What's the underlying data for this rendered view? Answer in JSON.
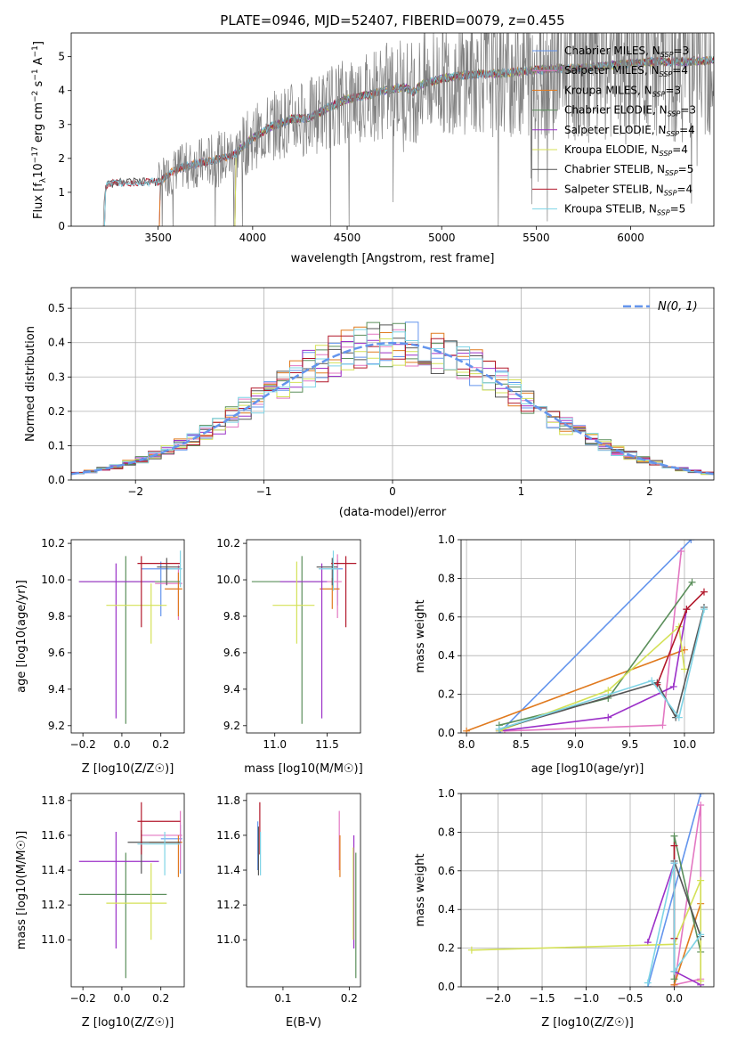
{
  "chart_data": [
    {
      "type": "line",
      "title": "PLATE=0946, MJD=52407, FIBERID=0079, z=0.455",
      "xlabel": "wavelength [Angstrom, rest frame]",
      "ylabel": "Flux [f_λ 10^-17 erg cm^-2 s^-1 A^-1]",
      "xlim": [
        3040,
        6440
      ],
      "ylim": [
        0,
        5.7
      ],
      "xticks": [
        "3500",
        "4000",
        "4500",
        "5000",
        "5500",
        "6000"
      ],
      "yticks": [
        "0",
        "1",
        "2",
        "3",
        "4",
        "5"
      ],
      "grid": false,
      "legend_position": "right",
      "data_series": {
        "name": "data",
        "color": "#808080",
        "x_start": 3210,
        "x_end": 6440,
        "noise_start": 3500
      },
      "series": [
        {
          "name": "Chabrier MILES, N_SSP=3",
          "color": "#6495ed",
          "x_start": 3500
        },
        {
          "name": "Salpeter MILES, N_SSP=4",
          "color": "#e377c2",
          "x_start": 3500
        },
        {
          "name": "Kroupa MILES, N_SSP=3",
          "color": "#e07a1f",
          "x_start": 3500
        },
        {
          "name": "Chabrier ELODIE, N_SSP=3",
          "color": "#5b8f5b",
          "x_start": 3900
        },
        {
          "name": "Salpeter ELODIE, N_SSP=4",
          "color": "#9b30c8",
          "x_start": 3900
        },
        {
          "name": "Kroupa ELODIE, N_SSP=4",
          "color": "#d4e157",
          "x_start": 3900
        },
        {
          "name": "Chabrier STELIB, N_SSP=5",
          "color": "#555555",
          "x_start": 3210
        },
        {
          "name": "Salpeter STELIB, N_SSP=4",
          "color": "#b2182b",
          "x_start": 3210
        },
        {
          "name": "Kroupa STELIB, N_SSP=5",
          "color": "#7fd4e6",
          "x_start": 3210
        }
      ],
      "continuum": [
        [
          3210,
          0
        ],
        [
          3215,
          0.9
        ],
        [
          3225,
          1.22
        ],
        [
          3300,
          1.3
        ],
        [
          3400,
          1.3
        ],
        [
          3500,
          1.3
        ],
        [
          3550,
          1.5
        ],
        [
          3600,
          1.7
        ],
        [
          3700,
          1.85
        ],
        [
          3800,
          1.95
        ],
        [
          3900,
          2.1
        ],
        [
          4000,
          2.6
        ],
        [
          4100,
          2.95
        ],
        [
          4200,
          3.15
        ],
        [
          4300,
          3.2
        ],
        [
          4400,
          3.5
        ],
        [
          4500,
          3.75
        ],
        [
          4600,
          3.85
        ],
        [
          4700,
          4.0
        ],
        [
          4800,
          4.1
        ],
        [
          4850,
          3.95
        ],
        [
          4900,
          4.2
        ],
        [
          5000,
          4.35
        ],
        [
          5100,
          4.45
        ],
        [
          5200,
          4.5
        ],
        [
          5300,
          4.5
        ],
        [
          5400,
          4.55
        ],
        [
          5500,
          4.6
        ],
        [
          5600,
          4.65
        ],
        [
          5700,
          4.65
        ],
        [
          5800,
          4.7
        ],
        [
          5900,
          4.75
        ],
        [
          6000,
          4.8
        ],
        [
          6100,
          4.85
        ],
        [
          6200,
          4.85
        ],
        [
          6300,
          4.85
        ],
        [
          6440,
          4.9
        ]
      ]
    },
    {
      "type": "line",
      "xlabel": "(data-model)/error",
      "ylabel": "Normed distribution",
      "xlim": [
        -2.5,
        2.5
      ],
      "ylim": [
        0,
        0.56
      ],
      "xticks": [
        "−2",
        "−1",
        "0",
        "1",
        "2"
      ],
      "yticks": [
        "0.0",
        "0.1",
        "0.2",
        "0.3",
        "0.4",
        "0.5"
      ],
      "grid": true,
      "legend": [
        {
          "label": "N(0,1)",
          "style": "dashed",
          "color": "#6495ed"
        }
      ],
      "legend_position": "top-right",
      "gaussian": {
        "mean": 0,
        "sigma": 1
      },
      "bin_width": 0.1,
      "series": [
        {
          "name": "Chabrier MILES",
          "color": "#6495ed"
        },
        {
          "name": "Salpeter MILES",
          "color": "#e377c2"
        },
        {
          "name": "Kroupa MILES",
          "color": "#e07a1f"
        },
        {
          "name": "Chabrier ELODIE",
          "color": "#5b8f5b"
        },
        {
          "name": "Salpeter ELODIE",
          "color": "#9b30c8"
        },
        {
          "name": "Kroupa ELODIE",
          "color": "#d4e157"
        },
        {
          "name": "Chabrier STELIB",
          "color": "#555555"
        },
        {
          "name": "Salpeter STELIB",
          "color": "#b2182b"
        },
        {
          "name": "Kroupa STELIB",
          "color": "#7fd4e6"
        }
      ]
    },
    {
      "type": "scatter",
      "xlabel": "Z [log10(Z/Z☉)]",
      "ylabel": "age [log10(age/yr)]",
      "xlim": [
        -0.26,
        0.32
      ],
      "ylim": [
        9.16,
        10.22
      ],
      "xticks": [
        "−0.2",
        "0.0",
        "0.2"
      ],
      "yticks": [
        "9.2",
        "9.4",
        "9.6",
        "9.8",
        "10.0",
        "10.2"
      ],
      "grid": false,
      "points": [
        {
          "color": "#6495ed",
          "x": 0.2,
          "xerr": [
            0.1,
            0.1
          ],
          "y": 10.06,
          "yerr": [
            0.26,
            0.04
          ]
        },
        {
          "color": "#e377c2",
          "x": 0.29,
          "xerr": [
            0.12,
            0.02
          ],
          "y": 9.98,
          "yerr": [
            0.2,
            0.1
          ]
        },
        {
          "color": "#e07a1f",
          "x": 0.29,
          "xerr": [
            0.07,
            0.02
          ],
          "y": 9.95,
          "yerr": [
            0.15,
            0.09
          ]
        },
        {
          "color": "#5b8f5b",
          "x": 0.02,
          "xerr": [
            0.24,
            0.28
          ],
          "y": 9.99,
          "yerr": [
            0.78,
            0.14
          ]
        },
        {
          "color": "#9b30c8",
          "x": -0.03,
          "xerr": [
            0.19,
            0.2
          ],
          "y": 9.99,
          "yerr": [
            0.75,
            0.1
          ]
        },
        {
          "color": "#d4e157",
          "x": 0.15,
          "xerr": [
            0.23,
            0.08
          ],
          "y": 9.86,
          "yerr": [
            0.21,
            0.12
          ]
        },
        {
          "color": "#555555",
          "x": 0.23,
          "xerr": [
            0.05,
            0.07
          ],
          "y": 10.07,
          "yerr": [
            0.1,
            0.05
          ]
        },
        {
          "color": "#b2182b",
          "x": 0.1,
          "xerr": [
            0.02,
            0.2
          ],
          "y": 10.09,
          "yerr": [
            0.35,
            0.04
          ]
        },
        {
          "color": "#7fd4e6",
          "x": 0.3,
          "xerr": [
            0.06,
            0.01
          ],
          "y": 10.06,
          "yerr": [
            0.1,
            0.1
          ]
        }
      ]
    },
    {
      "type": "scatter",
      "xlabel": "mass [log10(M/M☉)]",
      "xlim": [
        10.73,
        11.82
      ],
      "ylim": [
        9.16,
        10.22
      ],
      "xticks": [
        "11.0",
        "11.5"
      ],
      "yticks": [
        "9.2",
        "9.4",
        "9.6",
        "9.8",
        "10.0",
        "10.2"
      ],
      "grid": false,
      "points": [
        {
          "color": "#6495ed",
          "x": 11.6,
          "xerr": [
            0.05,
            0.05
          ],
          "y": 10.06,
          "yerr": [
            0.2,
            0.05
          ]
        },
        {
          "color": "#e377c2",
          "x": 11.6,
          "xerr": [
            0.1,
            0.04
          ],
          "y": 9.99,
          "yerr": [
            0.2,
            0.15
          ]
        },
        {
          "color": "#e07a1f",
          "x": 11.55,
          "xerr": [
            0.12,
            0.07
          ],
          "y": 9.95,
          "yerr": [
            0.11,
            0.06
          ]
        },
        {
          "color": "#5b8f5b",
          "x": 11.26,
          "xerr": [
            0.48,
            0.2
          ],
          "y": 9.99,
          "yerr": [
            0.78,
            0.14
          ]
        },
        {
          "color": "#9b30c8",
          "x": 11.45,
          "xerr": [
            0.4,
            0.05
          ],
          "y": 9.99,
          "yerr": [
            0.75,
            0.1
          ]
        },
        {
          "color": "#d4e157",
          "x": 11.21,
          "xerr": [
            0.23,
            0.17
          ],
          "y": 9.86,
          "yerr": [
            0.21,
            0.24
          ]
        },
        {
          "color": "#555555",
          "x": 11.55,
          "xerr": [
            0.15,
            0.05
          ],
          "y": 10.07,
          "yerr": [
            0.1,
            0.05
          ]
        },
        {
          "color": "#b2182b",
          "x": 11.68,
          "xerr": [
            0.14,
            0.1
          ],
          "y": 10.09,
          "yerr": [
            0.35,
            0.04
          ]
        },
        {
          "color": "#7fd4e6",
          "x": 11.56,
          "xerr": [
            0.14,
            0.05
          ],
          "y": 10.06,
          "yerr": [
            0.12,
            0.1
          ]
        }
      ]
    },
    {
      "type": "line",
      "xlabel": "age [log10(age/yr)]",
      "ylabel": "mass weight",
      "xlim": [
        7.95,
        10.27
      ],
      "ylim": [
        0,
        1
      ],
      "xticks": [
        "8.0",
        "8.5",
        "9.0",
        "9.5",
        "10.0"
      ],
      "yticks": [
        "0.0",
        "0.2",
        "0.4",
        "0.6",
        "0.8",
        "1.0"
      ],
      "grid": true,
      "series": [
        {
          "color": "#6495ed",
          "x": [
            8.3,
            10.06
          ],
          "y": [
            0.0,
            1.0
          ]
        },
        {
          "color": "#e377c2",
          "x": [
            8.35,
            9.8,
            9.97
          ],
          "y": [
            0.01,
            0.04,
            0.94
          ]
        },
        {
          "color": "#e07a1f",
          "x": [
            8.0,
            10.0
          ],
          "y": [
            0.01,
            0.43
          ]
        },
        {
          "color": "#5b8f5b",
          "x": [
            8.3,
            9.3,
            10.07
          ],
          "y": [
            0.04,
            0.18,
            0.78
          ]
        },
        {
          "color": "#9b30c8",
          "x": [
            8.3,
            9.3,
            9.9,
            10.02
          ],
          "y": [
            0.01,
            0.08,
            0.24,
            0.64
          ]
        },
        {
          "color": "#d4e157",
          "x": [
            8.3,
            9.3,
            9.95,
            10.0
          ],
          "y": [
            0.01,
            0.22,
            0.55,
            0.33
          ]
        },
        {
          "color": "#555555",
          "x": [
            8.3,
            9.75,
            9.92,
            10.18
          ],
          "y": [
            0.02,
            0.26,
            0.08,
            0.65
          ]
        },
        {
          "color": "#b2182b",
          "x": [
            9.75,
            10.02,
            10.18
          ],
          "y": [
            0.25,
            0.64,
            0.73
          ]
        },
        {
          "color": "#7fd4e6",
          "x": [
            8.3,
            9.7,
            9.95,
            10.18
          ],
          "y": [
            0.02,
            0.27,
            0.08,
            0.64
          ]
        }
      ]
    },
    {
      "type": "scatter",
      "xlabel": "Z [log10(Z/Z☉)]",
      "ylabel": "mass [log10(M/M☉)]",
      "xlim": [
        -0.26,
        0.32
      ],
      "ylim": [
        10.73,
        11.84
      ],
      "xticks": [
        "−0.2",
        "0.0",
        "0.2"
      ],
      "yticks": [
        "11.0",
        "11.2",
        "11.4",
        "11.6",
        "11.8"
      ],
      "grid": false,
      "points": [
        {
          "color": "#6495ed",
          "x": 0.3,
          "xerr": [
            0.1,
            0.01
          ],
          "y": 11.58,
          "yerr": [
            0.2,
            0.08
          ]
        },
        {
          "color": "#e377c2",
          "x": 0.3,
          "xerr": [
            0.2,
            0.01
          ],
          "y": 11.6,
          "yerr": [
            0.2,
            0.14
          ]
        },
        {
          "color": "#e07a1f",
          "x": 0.29,
          "xerr": [
            0.15,
            0.02
          ],
          "y": 11.56,
          "yerr": [
            0.2,
            0.04
          ]
        },
        {
          "color": "#5b8f5b",
          "x": 0.02,
          "xerr": [
            0.24,
            0.21
          ],
          "y": 11.26,
          "yerr": [
            0.48,
            0.24
          ]
        },
        {
          "color": "#9b30c8",
          "x": -0.03,
          "xerr": [
            0.19,
            0.22
          ],
          "y": 11.45,
          "yerr": [
            0.5,
            0.17
          ]
        },
        {
          "color": "#d4e157",
          "x": 0.15,
          "xerr": [
            0.23,
            0.08
          ],
          "y": 11.21,
          "yerr": [
            0.21,
            0.23
          ]
        },
        {
          "color": "#555555",
          "x": 0.1,
          "xerr": [
            0.07,
            0.2
          ],
          "y": 11.56,
          "yerr": [
            0.18,
            0.07
          ]
        },
        {
          "color": "#b2182b",
          "x": 0.1,
          "xerr": [
            0.02,
            0.2
          ],
          "y": 11.68,
          "yerr": [
            0.19,
            0.11
          ]
        },
        {
          "color": "#7fd4e6",
          "x": 0.22,
          "xerr": [
            0.14,
            0.08
          ],
          "y": 11.55,
          "yerr": [
            0.18,
            0.07
          ]
        }
      ]
    },
    {
      "type": "scatter",
      "xlabel": "E(B-V)",
      "xlim": [
        0.045,
        0.217
      ],
      "ylim": [
        10.73,
        11.84
      ],
      "xticks": [
        "0.1",
        "0.2"
      ],
      "yticks": [
        "11.0",
        "11.2",
        "11.4",
        "11.6",
        "11.8"
      ],
      "grid": false,
      "points": [
        {
          "color": "#6495ed",
          "x": 0.062,
          "y": 11.6,
          "yerr": [
            0.2,
            0.08
          ]
        },
        {
          "color": "#e377c2",
          "x": 0.185,
          "y": 11.6,
          "yerr": [
            0.2,
            0.14
          ]
        },
        {
          "color": "#e07a1f",
          "x": 0.186,
          "y": 11.56,
          "yerr": [
            0.2,
            0.04
          ]
        },
        {
          "color": "#5b8f5b",
          "x": 0.21,
          "y": 11.26,
          "yerr": [
            0.48,
            0.24
          ]
        },
        {
          "color": "#9b30c8",
          "x": 0.207,
          "y": 11.45,
          "yerr": [
            0.5,
            0.15
          ]
        },
        {
          "color": "#d4e157",
          "x": 0.206,
          "y": 11.21,
          "yerr": [
            0.21,
            0.32
          ]
        },
        {
          "color": "#555555",
          "x": 0.063,
          "y": 11.55,
          "yerr": [
            0.18,
            0.1
          ]
        },
        {
          "color": "#b2182b",
          "x": 0.065,
          "y": 11.68,
          "yerr": [
            0.19,
            0.11
          ]
        },
        {
          "color": "#7fd4e6",
          "x": 0.066,
          "y": 11.55,
          "yerr": [
            0.18,
            0.07
          ]
        }
      ]
    },
    {
      "type": "line",
      "xlabel": "Z [log10(Z/Z☉)]",
      "ylabel": "mass weight",
      "xlim": [
        -2.42,
        0.45
      ],
      "ylim": [
        0,
        1
      ],
      "xticks": [
        "−2.0",
        "−1.5",
        "−1.0",
        "−0.5",
        "0.0"
      ],
      "yticks": [
        "0.0",
        "0.2",
        "0.4",
        "0.6",
        "0.8",
        "1.0"
      ],
      "grid": true,
      "series": [
        {
          "color": "#6495ed",
          "x": [
            -0.3,
            0.3
          ],
          "y": [
            0.0,
            1.0
          ]
        },
        {
          "color": "#e377c2",
          "x": [
            0.0,
            0.3,
            0.3,
            0.0
          ],
          "y": [
            0.01,
            0.04,
            0.94,
            0.0
          ]
        },
        {
          "color": "#e07a1f",
          "x": [
            0.0,
            0.3
          ],
          "y": [
            0.01,
            0.43
          ]
        },
        {
          "color": "#5b8f5b",
          "x": [
            0.0,
            0.0,
            0.3
          ],
          "y": [
            0.04,
            0.78,
            0.18
          ]
        },
        {
          "color": "#9b30c8",
          "x": [
            -0.3,
            0.0,
            0.0,
            0.3
          ],
          "y": [
            0.23,
            0.64,
            0.08,
            0.01
          ]
        },
        {
          "color": "#d4e157",
          "x": [
            -2.3,
            0.0,
            0.3,
            0.3
          ],
          "y": [
            0.19,
            0.22,
            0.55,
            0.03
          ]
        },
        {
          "color": "#555555",
          "x": [
            0.0,
            0.0,
            0.3
          ],
          "y": [
            0.08,
            0.65,
            0.26
          ]
        },
        {
          "color": "#b2182b",
          "x": [
            0.0,
            0.0
          ],
          "y": [
            0.25,
            0.73
          ]
        },
        {
          "color": "#7fd4e6",
          "x": [
            -0.3,
            0.0,
            0.0,
            0.3
          ],
          "y": [
            0.02,
            0.64,
            0.08,
            0.27
          ]
        }
      ]
    }
  ]
}
